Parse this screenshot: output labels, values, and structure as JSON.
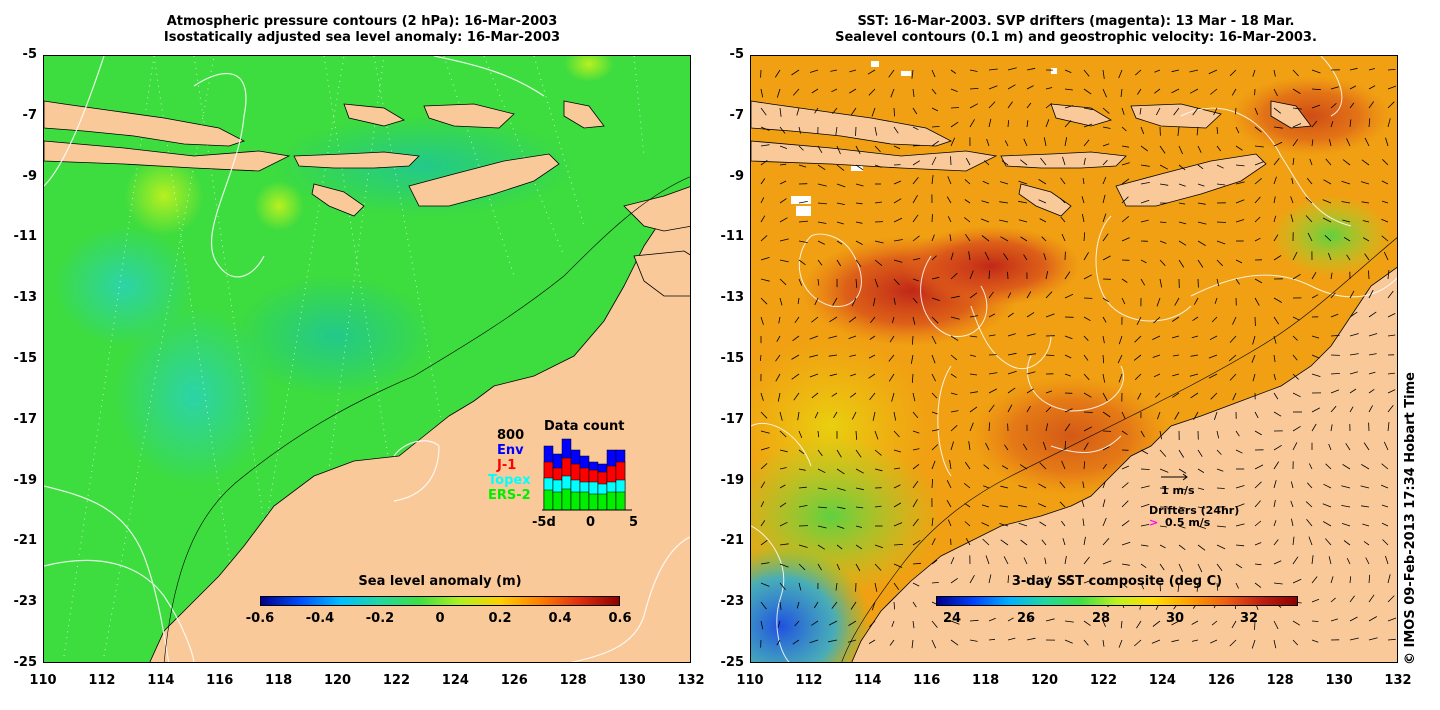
{
  "left_map": {
    "title_line1": "Atmospheric pressure contours (2 hPa): 16-Mar-2003",
    "title_line2": "Isostatically adjusted sea level anomaly: 16-Mar-2003",
    "colorbar_title": "Sea level anomaly (m)",
    "colorbar_ticks": [
      "-0.6",
      "-0.4",
      "-0.2",
      "0",
      "0.2",
      "0.4",
      "0.6"
    ],
    "data_count": {
      "title": "Data count",
      "max_label": "800",
      "series": [
        {
          "name": "Env",
          "color": "#0000ff"
        },
        {
          "name": "J-1",
          "color": "#ff0000"
        },
        {
          "name": "Topex",
          "color": "#00ffff"
        },
        {
          "name": "ERS-2",
          "color": "#00ee00"
        }
      ],
      "x_ticks": [
        "-5d",
        "0",
        "5"
      ]
    }
  },
  "right_map": {
    "title_line1": "SST: 16-Mar-2003. SVP drifters (magenta): 13 Mar - 18 Mar.",
    "title_line2": "Sealevel contours (0.1 m) and geostrophic velocity: 16-Mar-2003.",
    "colorbar_title": "3-day SST composite (deg C)",
    "colorbar_ticks": [
      "24",
      "26",
      "28",
      "30",
      "32"
    ],
    "velocity_scale_label": "1 m/s",
    "drifters_label": "Drifters (24hr)",
    "drifters_speed_label": "0.5 m/s",
    "drifters_marker": ">"
  },
  "axes": {
    "y_ticks": [
      "-5",
      "-7",
      "-9",
      "-11",
      "-13",
      "-15",
      "-17",
      "-19",
      "-21",
      "-23",
      "-25"
    ],
    "x_ticks": [
      "110",
      "112",
      "114",
      "116",
      "118",
      "120",
      "122",
      "124",
      "126",
      "128",
      "130",
      "132"
    ]
  },
  "credit": "© IMOS 09-Feb-2013 17:34 Hobart Time",
  "colors": {
    "land": "#f9c99a",
    "ocean_low": "#1fd59e",
    "ocean_mid": "#3fdc3f",
    "sst_warm": "#f39a10",
    "sst_hot": "#c8321e",
    "drifter_magenta": "#ff00ff"
  }
}
